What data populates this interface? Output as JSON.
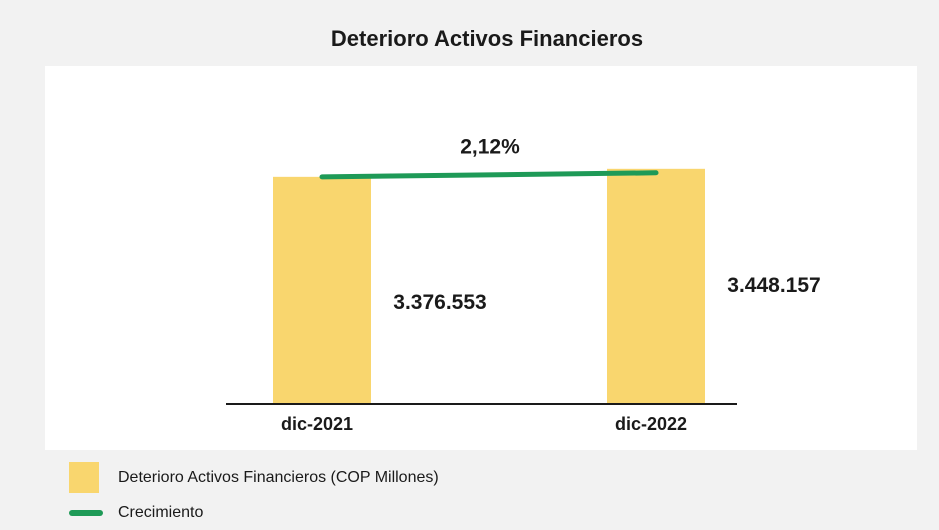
{
  "chart_data": {
    "type": "bar",
    "title": "Deterioro Activos Financieros",
    "categories": [
      "dic-2021",
      "dic-2022"
    ],
    "series": [
      {
        "name": "Deterioro Activos Financieros (COP Millones)",
        "color": "#f9d66e",
        "values": [
          3376553,
          3448157
        ],
        "value_labels": [
          "3.376.553",
          "3.448.157"
        ]
      }
    ],
    "growth": {
      "name": "Crecimiento",
      "color": "#1e9a57",
      "value": 2.12,
      "value_label": "2,12%"
    },
    "ylim": [
      1350000,
      3500000
    ]
  }
}
